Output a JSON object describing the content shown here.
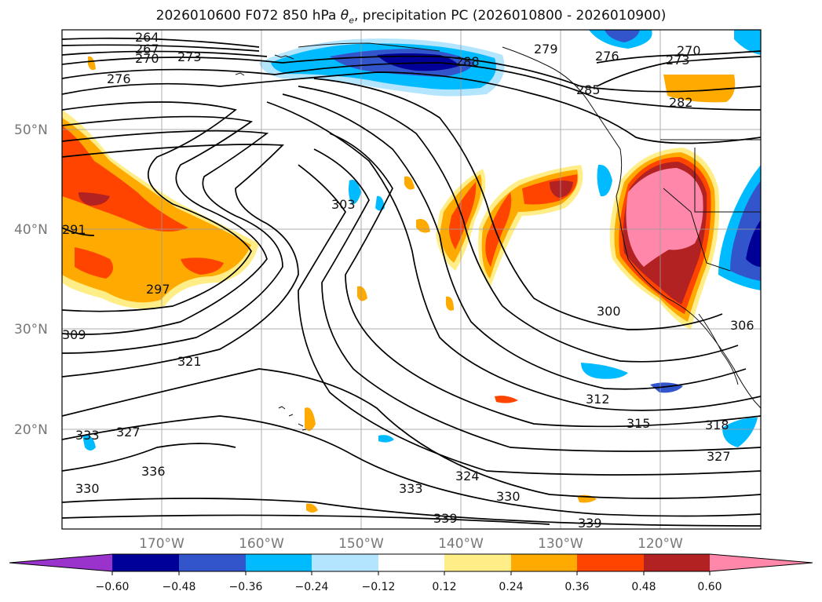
{
  "title_main": "2026010600 F072 850 hPa ",
  "title_theta": "θ",
  "title_sub": "e",
  "title_rest": ", precipitation PC (2026010800 - 2026010900)",
  "colors": {
    "purple": "#9933cc",
    "navy": "#000099",
    "blue": "#3355cc",
    "sky": "#00bbff",
    "lightblue": "#b3e5ff",
    "white": "#ffffff",
    "yellow": "#ffee88",
    "orange": "#ffaa00",
    "red_orange": "#ff4400",
    "dark_red": "#b22222",
    "pink": "#ff88aa",
    "grid": "#999999"
  },
  "lat_labels": [
    "50°N",
    "40°N",
    "30°N",
    "20°N"
  ],
  "lon_labels": [
    "170°W",
    "160°W",
    "150°W",
    "140°W",
    "130°W",
    "120°W"
  ],
  "colorbar": {
    "ticks": [
      "−0.60",
      "−0.48",
      "−0.36",
      "−0.24",
      "−0.12",
      "0.12",
      "0.24",
      "0.36",
      "0.48",
      "0.60"
    ]
  },
  "contour_labels": [
    "264",
    "267",
    "270",
    "273",
    "276",
    "279",
    "276",
    "273",
    "270",
    "285",
    "282",
    "288",
    "291",
    "297",
    "303",
    "300",
    "306",
    "309",
    "321",
    "312",
    "315",
    "318",
    "327",
    "324",
    "330",
    "333",
    "336",
    "327",
    "333",
    "330",
    "339",
    "339"
  ]
}
